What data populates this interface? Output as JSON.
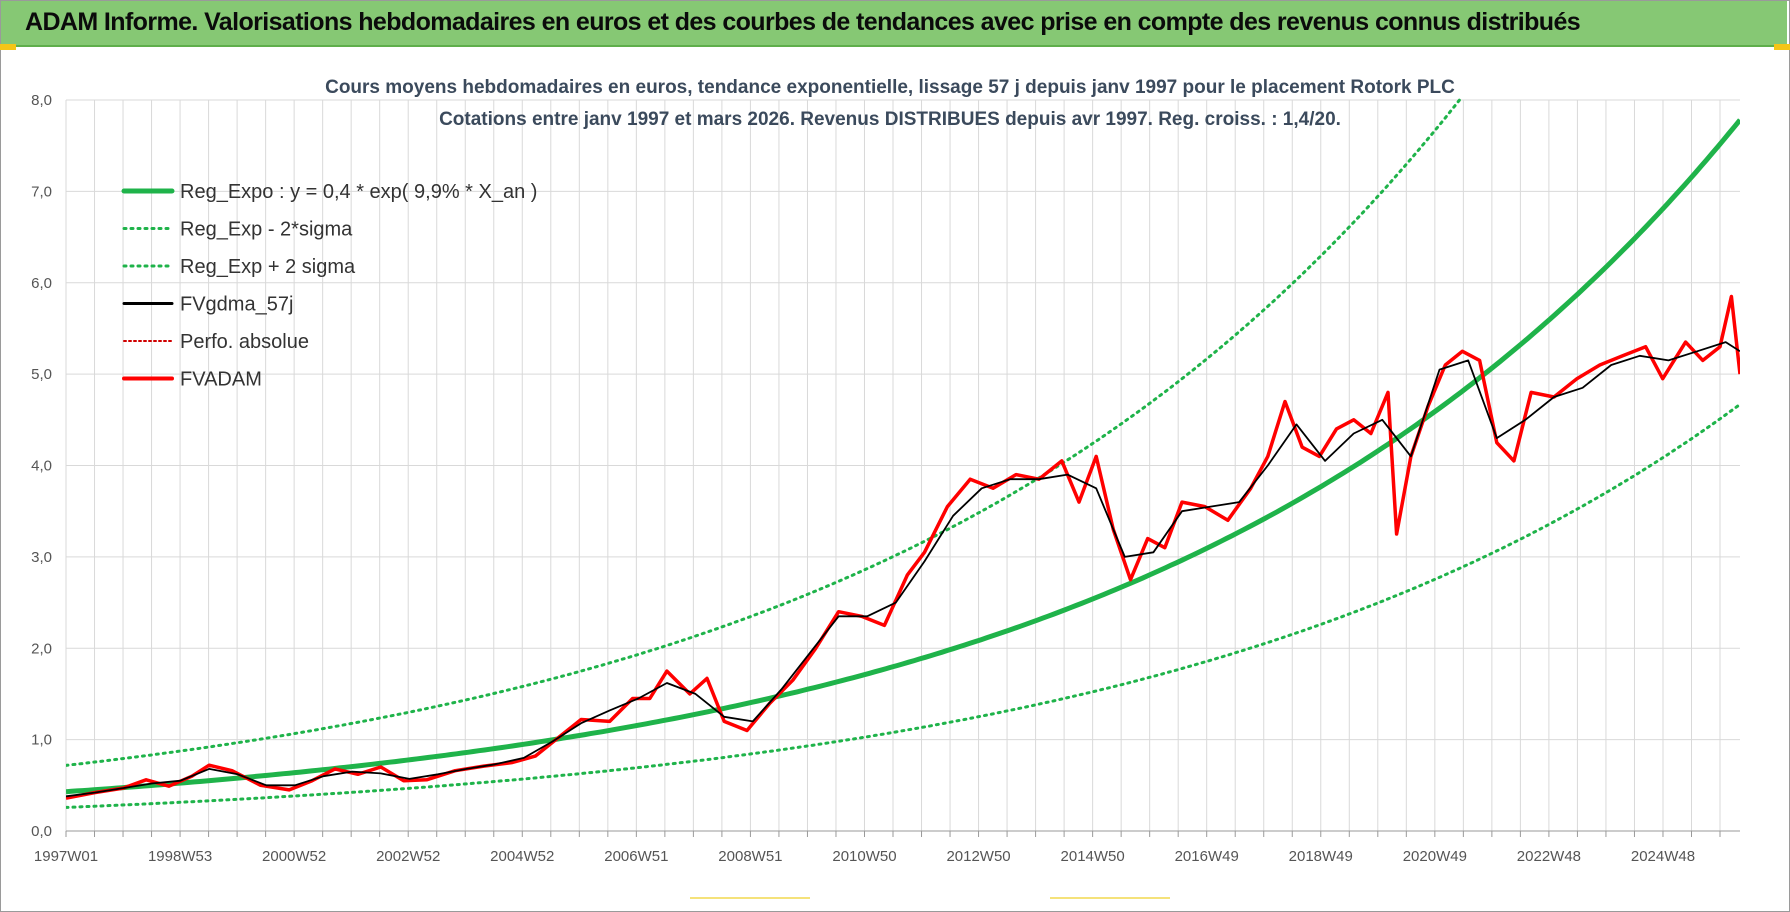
{
  "header": {
    "title": "ADAM Informe. Valorisations hebdomadaires en euros et des courbes de tendances avec prise en compte des revenus connus distribués"
  },
  "colors": {
    "banner": "#86c874",
    "reg_expo": "#1fb34a",
    "sigma_lines": "#1fb34a",
    "fvgdma": "#000000",
    "fvadam": "#ff0000",
    "perfo": "#d00000",
    "grid": "#d9d9d9"
  },
  "chart_data": {
    "type": "line",
    "title_lines": [
      "Cours moyens hebdomadaires en euros, tendance exponentielle, lissage 57 j depuis janv 1997  pour le placement Rotork PLC",
      "Cotations entre janv 1997 et mars 2026. Revenus DISTRIBUES depuis avr 1997. Reg. croiss. : 1,4/20."
    ],
    "xlabel": "",
    "ylabel": "",
    "ylim": [
      0,
      8
    ],
    "xlim": [
      1997.0,
      2026.25
    ],
    "yticks": [
      "0,0",
      "1,0",
      "2,0",
      "3,0",
      "4,0",
      "5,0",
      "6,0",
      "7,0",
      "8,0"
    ],
    "xticks": [
      "1997W01",
      "1998W53",
      "2000W52",
      "2002W52",
      "2004W52",
      "2006W51",
      "2008W51",
      "2010W50",
      "2012W50",
      "2014W50",
      "2016W49",
      "2018W49",
      "2020W49",
      "2022W48",
      "2024W48"
    ],
    "grid": true,
    "legend_position": "top-left",
    "legend": [
      "Reg_Expo : y = 0,4 * exp( 9,9% *  X_an )",
      "Reg_Exp - 2*sigma",
      "Reg_Exp + 2 sigma",
      "FVgdma_57j",
      "Perfo. absolue",
      "FVADAM"
    ],
    "trend": {
      "a": 0.43,
      "rate": 0.099,
      "x0": 1997.0
    },
    "sigma_factor_low": 0.6,
    "sigma_factor_high": 1.67,
    "series": [
      {
        "name": "FVADAM",
        "x": [
          1997.0,
          1997.5,
          1998.0,
          1998.4,
          1998.8,
          1999.2,
          1999.5,
          1999.9,
          2000.4,
          2000.9,
          2001.3,
          2001.7,
          2002.1,
          2002.5,
          2002.9,
          2003.3,
          2003.8,
          2004.3,
          2004.8,
          2005.2,
          2005.6,
          2006.0,
          2006.5,
          2006.9,
          2007.2,
          2007.5,
          2007.9,
          2008.2,
          2008.5,
          2008.9,
          2009.3,
          2009.7,
          2010.1,
          2010.5,
          2010.9,
          2011.3,
          2011.7,
          2012.0,
          2012.4,
          2012.8,
          2013.2,
          2013.6,
          2014.0,
          2014.4,
          2014.7,
          2015.0,
          2015.3,
          2015.6,
          2015.9,
          2016.2,
          2016.5,
          2016.9,
          2017.3,
          2017.7,
          2018.0,
          2018.3,
          2018.6,
          2018.9,
          2019.2,
          2019.5,
          2019.8,
          2020.1,
          2020.25,
          2020.5,
          2020.8,
          2021.1,
          2021.4,
          2021.7,
          2022.0,
          2022.3,
          2022.6,
          2023.0,
          2023.4,
          2023.8,
          2024.2,
          2024.6,
          2024.9,
          2025.3,
          2025.6,
          2025.9,
          2026.1,
          2026.25
        ],
        "values": [
          0.36,
          0.42,
          0.47,
          0.56,
          0.49,
          0.6,
          0.72,
          0.66,
          0.5,
          0.45,
          0.55,
          0.68,
          0.62,
          0.7,
          0.55,
          0.56,
          0.66,
          0.71,
          0.75,
          0.82,
          1.02,
          1.22,
          1.2,
          1.45,
          1.45,
          1.75,
          1.5,
          1.67,
          1.2,
          1.1,
          1.4,
          1.65,
          2.0,
          2.4,
          2.35,
          2.25,
          2.8,
          3.05,
          3.55,
          3.85,
          3.75,
          3.9,
          3.85,
          4.05,
          3.6,
          4.1,
          3.3,
          2.75,
          3.2,
          3.1,
          3.6,
          3.55,
          3.4,
          3.75,
          4.1,
          4.7,
          4.2,
          4.1,
          4.4,
          4.5,
          4.35,
          4.8,
          3.25,
          4.1,
          4.65,
          5.1,
          5.25,
          5.15,
          4.25,
          4.05,
          4.8,
          4.75,
          4.95,
          5.1,
          5.2,
          5.3,
          4.95,
          5.35,
          5.15,
          5.3,
          5.85,
          5.0
        ]
      },
      {
        "name": "FVgdma_57j",
        "x": [
          1997.0,
          1997.5,
          1998.0,
          1998.5,
          1999.0,
          1999.5,
          2000.0,
          2000.5,
          2001.0,
          2001.5,
          2002.0,
          2002.5,
          2003.0,
          2003.5,
          2004.0,
          2004.5,
          2005.0,
          2005.5,
          2006.0,
          2006.5,
          2007.0,
          2007.5,
          2008.0,
          2008.5,
          2009.0,
          2009.5,
          2010.0,
          2010.5,
          2011.0,
          2011.5,
          2012.0,
          2012.5,
          2013.0,
          2013.5,
          2014.0,
          2014.5,
          2015.0,
          2015.5,
          2016.0,
          2016.5,
          2017.0,
          2017.5,
          2018.0,
          2018.5,
          2019.0,
          2019.5,
          2020.0,
          2020.5,
          2021.0,
          2021.5,
          2022.0,
          2022.5,
          2023.0,
          2023.5,
          2024.0,
          2024.5,
          2025.0,
          2025.5,
          2026.0,
          2026.25
        ],
        "values": [
          0.38,
          0.42,
          0.47,
          0.52,
          0.55,
          0.68,
          0.62,
          0.5,
          0.5,
          0.6,
          0.65,
          0.63,
          0.57,
          0.62,
          0.68,
          0.73,
          0.8,
          0.98,
          1.18,
          1.32,
          1.45,
          1.62,
          1.5,
          1.25,
          1.2,
          1.55,
          1.95,
          2.35,
          2.35,
          2.5,
          2.95,
          3.45,
          3.75,
          3.85,
          3.85,
          3.9,
          3.75,
          3.0,
          3.05,
          3.5,
          3.55,
          3.6,
          4.0,
          4.45,
          4.05,
          4.35,
          4.5,
          4.1,
          5.05,
          5.15,
          4.3,
          4.5,
          4.75,
          4.85,
          5.1,
          5.2,
          5.15,
          5.25,
          5.35,
          5.25
        ]
      }
    ]
  }
}
